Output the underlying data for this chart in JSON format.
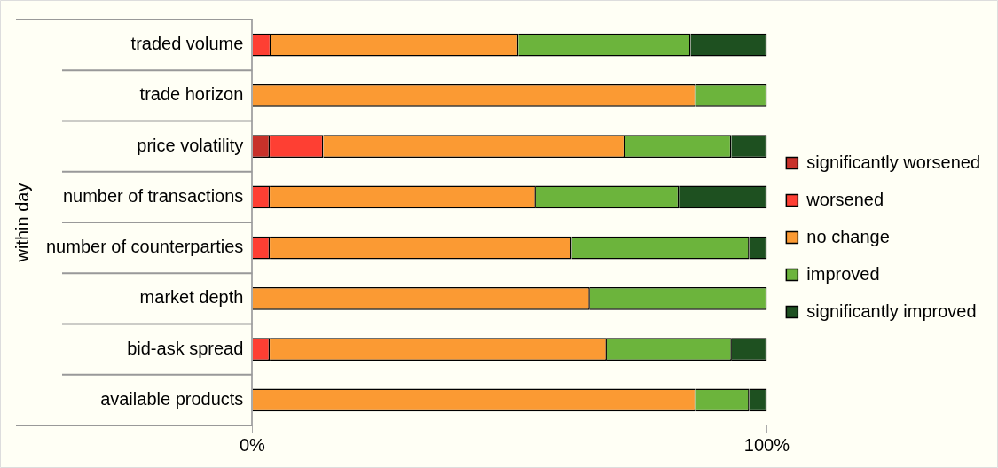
{
  "chart_data": {
    "type": "bar",
    "orientation": "horizontal",
    "stacked": true,
    "ylabel": "within day",
    "categories": [
      "traded volume",
      "trade horizon",
      "price volatility",
      "number of transactions",
      "number of counterparties",
      "market depth",
      "bid-ask spread",
      "available products"
    ],
    "series": [
      {
        "name": "significantly worsened",
        "color": "#c8312a",
        "values": [
          0,
          0,
          3.4,
          0,
          0,
          0,
          0,
          0
        ]
      },
      {
        "name": "worsened",
        "color": "#fe3f33",
        "values": [
          3.6,
          0,
          10.4,
          3.4,
          3.4,
          0,
          3.4,
          0
        ]
      },
      {
        "name": "no change",
        "color": "#fb9a33",
        "values": [
          48.1,
          86.2,
          58.6,
          51.7,
          58.7,
          65.6,
          65.5,
          86.2
        ]
      },
      {
        "name": "improved",
        "color": "#6cb43c",
        "values": [
          33.5,
          13.8,
          20.7,
          27.8,
          34.5,
          34.4,
          24.3,
          10.4
        ]
      },
      {
        "name": "significantly improved",
        "color": "#1e5020",
        "values": [
          14.8,
          0,
          6.9,
          17.1,
          3.4,
          0,
          6.8,
          3.4
        ]
      }
    ],
    "xlim": [
      0,
      100
    ],
    "xticks": [
      {
        "value": 0,
        "label": "0%"
      },
      {
        "value": 100,
        "label": "100%"
      }
    ],
    "grid": false,
    "legend": "right"
  }
}
